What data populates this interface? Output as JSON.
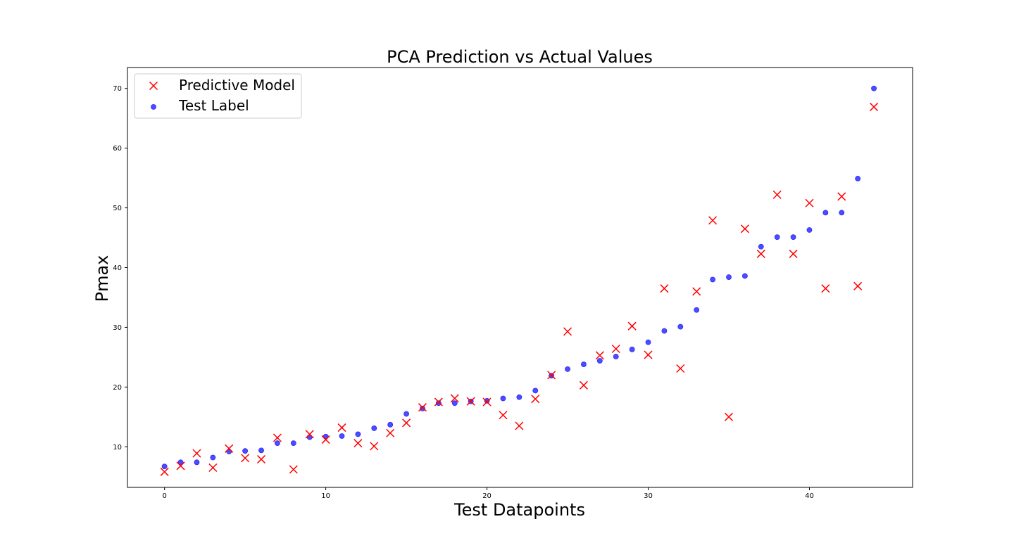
{
  "chart_data": {
    "type": "scatter",
    "title": "PCA Prediction vs Actual Values",
    "xlabel": "Test Datapoints",
    "ylabel": "Pmax",
    "xlim": [
      -2.3,
      46.4
    ],
    "ylim": [
      3.2,
      73.5
    ],
    "xticks": [
      0,
      10,
      20,
      30,
      40
    ],
    "yticks": [
      10,
      20,
      30,
      40,
      50,
      60,
      70
    ],
    "grid": false,
    "legend_position": "top-left",
    "series": [
      {
        "name": "Predictive Model",
        "marker": "x",
        "color": "#ff0000",
        "x": [
          0,
          1,
          2,
          3,
          4,
          5,
          6,
          7,
          8,
          9,
          10,
          11,
          12,
          13,
          14,
          15,
          16,
          17,
          18,
          19,
          20,
          21,
          22,
          23,
          24,
          25,
          26,
          27,
          28,
          29,
          30,
          31,
          32,
          33,
          34,
          35,
          36,
          37,
          38,
          39,
          40,
          41,
          42,
          43,
          44
        ],
        "y": [
          5.8,
          6.8,
          8.9,
          6.5,
          9.7,
          8.1,
          7.9,
          11.5,
          6.2,
          12.1,
          11.2,
          13.2,
          10.6,
          10.1,
          12.3,
          14.0,
          16.6,
          17.5,
          18.1,
          17.6,
          17.5,
          15.3,
          13.5,
          18.0,
          22.0,
          29.3,
          20.3,
          25.3,
          26.4,
          30.2,
          25.4,
          36.5,
          23.1,
          36.0,
          47.9,
          15.0,
          46.5,
          42.3,
          52.2,
          42.3,
          50.8,
          36.5,
          51.9,
          36.9,
          66.9
        ]
      },
      {
        "name": "Test Label",
        "marker": "o",
        "color": "#0000ff",
        "x": [
          0,
          1,
          2,
          3,
          4,
          5,
          6,
          7,
          8,
          9,
          10,
          11,
          12,
          13,
          14,
          15,
          16,
          17,
          18,
          19,
          20,
          21,
          22,
          23,
          24,
          25,
          26,
          27,
          28,
          29,
          30,
          31,
          32,
          33,
          34,
          35,
          36,
          37,
          38,
          39,
          40,
          41,
          42,
          43,
          44
        ],
        "y": [
          6.7,
          7.4,
          7.4,
          8.2,
          9.2,
          9.3,
          9.4,
          10.6,
          10.6,
          11.6,
          11.7,
          11.8,
          12.1,
          13.1,
          13.7,
          15.5,
          16.4,
          17.3,
          17.3,
          17.6,
          17.7,
          18.1,
          18.3,
          19.4,
          21.9,
          23.0,
          23.8,
          24.4,
          25.1,
          26.3,
          27.5,
          29.4,
          30.1,
          32.9,
          38.0,
          38.4,
          38.6,
          43.5,
          45.1,
          45.1,
          46.3,
          49.2,
          49.2,
          54.9,
          70.0
        ]
      }
    ]
  }
}
